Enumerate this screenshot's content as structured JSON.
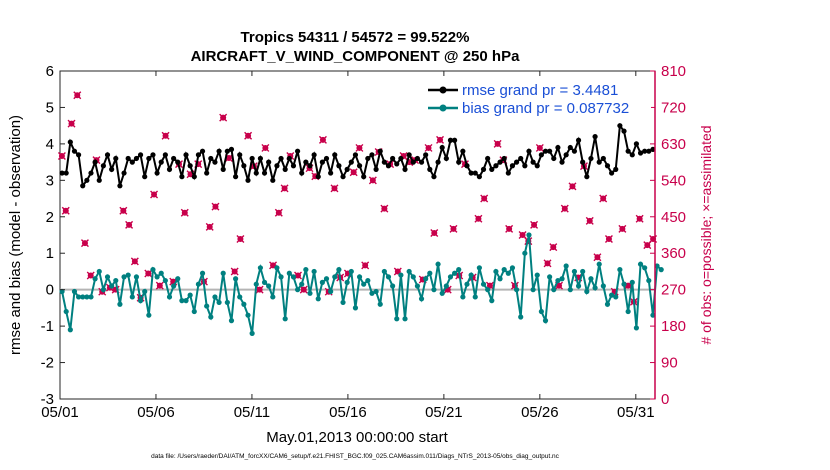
{
  "chart_data": {
    "type": "line",
    "title": "Tropics 54311 / 54572 = 99.522%",
    "subtitle": "AIRCRAFT_V_WIND_COMPONENT @ 250 hPa",
    "xlabel": "May.01,2013 00:00:00 start",
    "ylabel_left": "rmse and bias (model - observation)",
    "ylabel_right": "# of obs: o=possible; ×=assimilated",
    "footnote": "data file: /Users/raeder/DAI/ATM_forcXX/CAM6_setup/f.e21.FHIST_BGC.f09_025.CAM6assim.011/Diags_NTrS_2013-05/obs_diag_output.nc",
    "xlim": [
      1,
      32
    ],
    "ylim_left": [
      -3,
      6
    ],
    "ylim_right": [
      0,
      810
    ],
    "x_tick_values": [
      1,
      6,
      11,
      16,
      21,
      26,
      31
    ],
    "x_tick_labels": [
      "05/01",
      "05/06",
      "05/11",
      "05/16",
      "05/21",
      "05/26",
      "05/31"
    ],
    "y_left_ticks": [
      "-3",
      "-2",
      "-1",
      "0",
      "1",
      "2",
      "3",
      "4",
      "5",
      "6"
    ],
    "y_right_ticks": [
      "0",
      "90",
      "180",
      "270",
      "360",
      "450",
      "540",
      "630",
      "720",
      "810"
    ],
    "zero_line": 0,
    "legend": [
      {
        "label": "rmse grand pr = 3.4481",
        "color": "#000000"
      },
      {
        "label": "bias grand pr = 0.087732",
        "color": "#008080"
      }
    ],
    "colors": {
      "rmse": "#000000",
      "bias": "#008080",
      "obs": "#c8004b",
      "zero": "#b4b4b4"
    },
    "series": [
      {
        "name": "rmse",
        "values": [
          3.2,
          3.2,
          4.05,
          3.8,
          3.7,
          2.85,
          3.0,
          3.2,
          3.5,
          3.0,
          3.4,
          3.7,
          3.3,
          3.6,
          2.85,
          3.2,
          3.6,
          3.5,
          3.6,
          3.7,
          3.1,
          3.6,
          3.7,
          3.2,
          3.5,
          3.7,
          3.3,
          3.6,
          3.5,
          3.1,
          3.7,
          3.4,
          3.1,
          3.7,
          3.8,
          3.2,
          3.6,
          3.5,
          3.8,
          3.3,
          3.8,
          3.85,
          3.1,
          3.7,
          3.4,
          3.0,
          3.6,
          3.2,
          3.6,
          3.2,
          3.5,
          3.0,
          3.4,
          3.6,
          3.3,
          3.6,
          3.4,
          3.8,
          3.2,
          3.5,
          3.4,
          3.7,
          3.1,
          3.5,
          3.6,
          3.2,
          3.7,
          3.4,
          3.1,
          3.3,
          3.5,
          3.7,
          3.4,
          3.1,
          3.6,
          3.7,
          3.3,
          3.8,
          3.5,
          3.4,
          3.6,
          3.45,
          3.6,
          3.3,
          3.7,
          3.5,
          3.6,
          3.5,
          3.7,
          3.3,
          3.1,
          3.5,
          3.9,
          3.6,
          4.1,
          4.1,
          3.5,
          3.8,
          3.4,
          3.2,
          3.2,
          3.1,
          3.3,
          3.6,
          3.3,
          3.4,
          3.5,
          3.6,
          3.2,
          3.4,
          3.5,
          3.6,
          3.4,
          3.8,
          3.5,
          3.4,
          3.7,
          3.8,
          3.8,
          3.6,
          3.9,
          3.5,
          3.7,
          3.9,
          3.8,
          4.1,
          3.5,
          3.1,
          3.6,
          4.2,
          3.5,
          3.6,
          3.4,
          3.2,
          3.3,
          4.5,
          4.35,
          3.8,
          3.7,
          4.0,
          3.75,
          3.8,
          3.8,
          3.85
        ],
        "bias": [
          -0.05,
          -0.6,
          -1.1,
          -0.05,
          -0.2,
          -0.2,
          -0.2,
          -0.2,
          0.3,
          0.5,
          0.0,
          0.35,
          0.1,
          0.25,
          -0.4,
          0.35,
          0.4,
          -0.2,
          0.35,
          -0.3,
          -0.05,
          -0.7,
          0.55,
          0.35,
          0.45,
          0.25,
          -0.2,
          0.1,
          0.3,
          -0.3,
          -0.3,
          -0.15,
          -0.6,
          0.15,
          0.45,
          -0.45,
          -0.75,
          -0.2,
          -0.35,
          0.45,
          -0.35,
          -0.85,
          0.3,
          -0.2,
          -0.4,
          -0.7,
          -1.2,
          0.15,
          0.6,
          0.2,
          0.1,
          -0.2,
          0.6,
          0.35,
          -0.8,
          0.45,
          0.35,
          0.0,
          0.15,
          0.55,
          -0.1,
          0.5,
          -0.25,
          0.2,
          0.3,
          -0.05,
          0.35,
          0.55,
          -0.35,
          0.2,
          0.5,
          -0.5,
          0.35,
          0.15,
          0.25,
          -0.1,
          -0.05,
          -0.4,
          0.5,
          0.35,
          0.1,
          -0.8,
          0.4,
          -0.8,
          0.5,
          0.35,
          0.1,
          -0.25,
          0.3,
          0.45,
          0.0,
          0.7,
          -0.1,
          0.1,
          0.35,
          0.45,
          0.55,
          -0.2,
          0.15,
          0.4,
          -0.2,
          0.6,
          0.15,
          0.0,
          -0.3,
          0.5,
          0.3,
          0.55,
          0.45,
          0.6,
          0.0,
          -0.75,
          1.0,
          1.5,
          0.0,
          0.4,
          -0.6,
          -0.85,
          0.35,
          0.0,
          0.25,
          0.3,
          0.65,
          0.0,
          0.5,
          0.1,
          0.5,
          -0.05,
          0.3,
          0.05,
          0.7,
          0.1,
          -0.4,
          -0.15,
          -0.2,
          0.55,
          0.15,
          -0.6,
          0.2,
          -1.05,
          0.7,
          0.6,
          0.25,
          -0.7,
          0.65,
          0.55
        ]
      },
      {
        "name": "obs_count",
        "x_days": [
          1.1,
          1.3,
          1.6,
          1.9,
          2.3,
          2.6,
          2.9,
          3.2,
          3.6,
          3.9,
          4.3,
          4.6,
          4.9,
          5.2,
          5.6,
          5.9,
          6.2,
          6.5,
          6.9,
          7.2,
          7.5,
          7.8,
          8.2,
          8.5,
          8.8,
          9.1,
          9.5,
          9.8,
          10.1,
          10.4,
          10.8,
          11.1,
          11.4,
          11.7,
          12.1,
          12.4,
          12.7,
          13.0,
          13.4,
          13.7,
          14.0,
          14.3,
          14.7,
          15.0,
          15.3,
          15.6,
          16.0,
          16.3,
          16.6,
          16.9,
          17.3,
          17.6,
          17.9,
          18.2,
          18.6,
          18.9,
          19.2,
          19.5,
          19.9,
          20.2,
          20.5,
          20.8,
          21.2,
          21.5,
          21.8,
          22.1,
          22.5,
          22.8,
          23.1,
          23.4,
          23.8,
          24.1,
          24.4,
          24.7,
          25.1,
          25.4,
          25.7,
          26.0,
          26.4,
          26.7,
          27.0,
          27.3,
          27.7,
          28.0,
          28.3,
          28.6,
          29.0,
          29.3,
          29.6,
          29.9,
          30.3,
          30.6,
          30.9,
          31.2,
          31.6,
          31.9
        ],
        "values": [
          600,
          465,
          680,
          750,
          385,
          305,
          590,
          265,
          275,
          270,
          465,
          430,
          340,
          250,
          310,
          505,
          280,
          650,
          290,
          580,
          460,
          555,
          580,
          290,
          425,
          475,
          695,
          595,
          315,
          395,
          650,
          575,
          270,
          620,
          330,
          460,
          520,
          600,
          305,
          270,
          570,
          550,
          640,
          265,
          520,
          300,
          310,
          560,
          620,
          330,
          540,
          610,
          470,
          580,
          315,
          600,
          585,
          590,
          295,
          620,
          410,
          640,
          270,
          420,
          305,
          580,
          300,
          445,
          495,
          280,
          630,
          590,
          420,
          280,
          405,
          390,
          430,
          620,
          335,
          375,
          280,
          470,
          525,
          300,
          575,
          440,
          350,
          495,
          395,
          265,
          420,
          280,
          240,
          445,
          380,
          395
        ]
      }
    ]
  }
}
